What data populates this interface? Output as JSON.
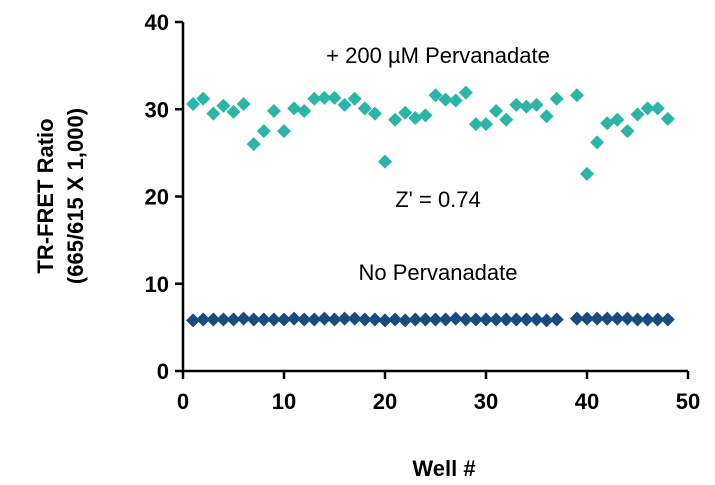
{
  "chart_data": {
    "type": "scatter",
    "xlabel": "Well #",
    "ylabel": [
      "TR-FRET Ratio",
      "(665/615 X 1,000)"
    ],
    "xlim": [
      0,
      50
    ],
    "ylim": [
      0,
      40
    ],
    "x_ticks": [
      0,
      10,
      20,
      30,
      40,
      50
    ],
    "y_ticks": [
      0,
      10,
      20,
      30,
      40
    ],
    "grid": false,
    "annotations": [
      {
        "id": "top",
        "text": "+ 200 µM Pervanadate"
      },
      {
        "id": "z",
        "text": "Z' = 0.74"
      },
      {
        "id": "bottom",
        "text": "No Pervanadate"
      }
    ],
    "series": [
      {
        "color": "#2ab5a5",
        "marker": "diamond",
        "x": [
          1,
          2,
          3,
          4,
          5,
          6,
          7,
          8,
          9,
          10,
          11,
          12,
          13,
          14,
          15,
          16,
          17,
          18,
          19,
          20,
          21,
          22,
          23,
          24,
          25,
          26,
          27,
          28,
          29,
          30,
          31,
          32,
          33,
          34,
          35,
          36,
          37,
          39,
          40,
          41,
          42,
          43,
          44,
          45,
          46,
          47,
          48
        ],
        "y": [
          30.6,
          31.2,
          29.5,
          30.4,
          29.7,
          30.6,
          26.0,
          27.5,
          29.8,
          27.5,
          30.1,
          29.8,
          31.2,
          31.3,
          31.3,
          30.5,
          31.2,
          30.1,
          29.5,
          24.0,
          28.8,
          29.6,
          29.0,
          29.3,
          31.6,
          31.1,
          31.0,
          31.9,
          28.3,
          28.3,
          29.8,
          28.8,
          30.5,
          30.3,
          30.5,
          29.2,
          31.2,
          31.6,
          22.6,
          26.2,
          28.4,
          28.8,
          27.5,
          29.4,
          30.1,
          30.1,
          28.9
        ]
      },
      {
        "color": "#1b4a80",
        "marker": "diamond",
        "x": [
          1,
          2,
          3,
          4,
          5,
          6,
          7,
          8,
          9,
          10,
          11,
          12,
          13,
          14,
          15,
          16,
          17,
          18,
          19,
          20,
          21,
          22,
          23,
          24,
          25,
          26,
          27,
          28,
          29,
          30,
          31,
          32,
          33,
          34,
          35,
          36,
          37,
          39,
          40,
          41,
          42,
          43,
          44,
          45,
          46,
          47,
          48
        ],
        "y": [
          5.8,
          5.9,
          5.9,
          5.9,
          5.9,
          6.0,
          5.9,
          5.9,
          5.9,
          5.9,
          6.0,
          5.9,
          5.9,
          6.0,
          5.9,
          6.0,
          6.0,
          5.9,
          5.9,
          5.8,
          5.9,
          5.8,
          5.9,
          5.9,
          5.9,
          5.9,
          6.0,
          5.9,
          5.9,
          5.9,
          5.9,
          5.9,
          5.9,
          5.9,
          5.9,
          5.8,
          5.9,
          6.0,
          6.0,
          6.0,
          6.0,
          6.0,
          6.0,
          5.9,
          5.9,
          5.9,
          5.9
        ]
      }
    ]
  }
}
